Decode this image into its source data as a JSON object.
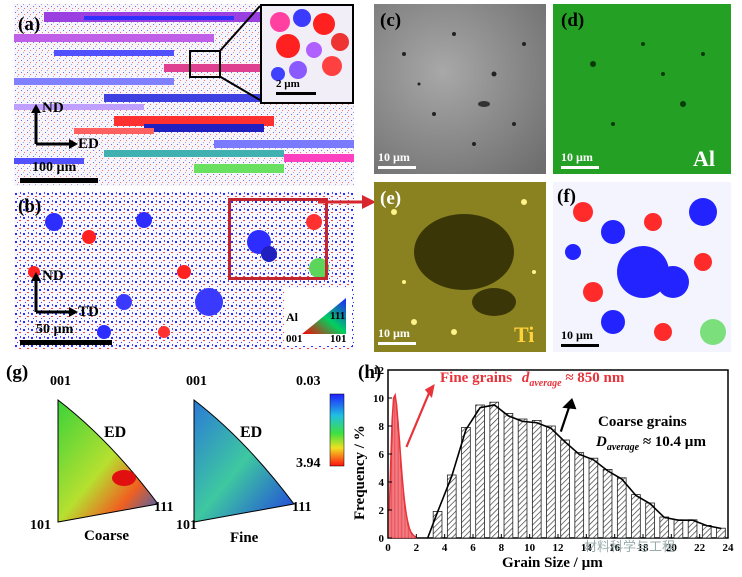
{
  "panels": {
    "a": {
      "label": "(a)",
      "axis_v": "ND",
      "axis_h": "ED",
      "scale_bar": "100 µm",
      "inset_scale": "2 µm"
    },
    "b": {
      "label": "(b)",
      "axis_v": "ND",
      "axis_h": "TD",
      "scale_bar": "50 µm",
      "ipf_key": {
        "element": "Al",
        "c001": "001",
        "c101": "101",
        "c111": "111"
      }
    },
    "c": {
      "label": "(c)",
      "scale_bar": "10 µm"
    },
    "d": {
      "label": "(d)",
      "scale_bar": "10 µm",
      "element": "Al"
    },
    "e": {
      "label": "(e)",
      "scale_bar": "10 µm",
      "element": "Ti"
    },
    "f": {
      "label": "(f)",
      "scale_bar": "10 µm"
    },
    "g": {
      "label": "(g)",
      "pole_figures": [
        {
          "name": "Coarse",
          "top": "001",
          "direction": "ED",
          "left": "101",
          "right": "111"
        },
        {
          "name": "Fine",
          "top": "001",
          "direction": "ED",
          "left": "101",
          "right": "111"
        }
      ],
      "colorbar": {
        "max": "0.03",
        "min": "3.94"
      }
    },
    "h": {
      "label": "(h)",
      "fine_label": "Fine grains",
      "fine_d_symbol": "d",
      "fine_d_sub": "average",
      "fine_value": "≈ 850 nm",
      "coarse_label": "Coarse grains",
      "coarse_d_symbol": "D",
      "coarse_d_sub": "average",
      "coarse_value": "≈ 10.4 µm",
      "watermark": "材料科学与工程"
    }
  },
  "chart_data": {
    "type": "bar",
    "xlabel": "Grain Size / µm",
    "ylabel": "Frequency / %",
    "xlim": [
      0,
      24
    ],
    "ylim": [
      0,
      12
    ],
    "xticks": [
      "0",
      "2",
      "4",
      "6",
      "8",
      "10",
      "12",
      "14",
      "16",
      "18",
      "20",
      "22",
      "24"
    ],
    "yticks": [
      "0",
      "2",
      "4",
      "6",
      "8",
      "10",
      "12"
    ],
    "series": [
      {
        "name": "Fine grains",
        "color": "#e8333a",
        "x": [
          0.1,
          0.2,
          0.3,
          0.4,
          0.5,
          0.6,
          0.7,
          0.8,
          0.9,
          1.0,
          1.1,
          1.2,
          1.3,
          1.4,
          1.5,
          1.6,
          1.7,
          1.8,
          1.9,
          2.0
        ],
        "values": [
          2.0,
          5.5,
          8.5,
          10.0,
          10.2,
          9.5,
          8.3,
          7.0,
          5.6,
          4.3,
          3.2,
          2.3,
          1.6,
          1.1,
          0.7,
          0.45,
          0.3,
          0.18,
          0.1,
          0.05
        ]
      },
      {
        "name": "Coarse grains",
        "color": "#555555",
        "x": [
          3.5,
          4.5,
          5.5,
          6.5,
          7.5,
          8.5,
          9.5,
          10.5,
          11.5,
          12.5,
          13.5,
          14.5,
          15.5,
          16.5,
          17.5,
          18.5,
          19.5,
          20.5,
          21.5,
          22.5,
          23.5
        ],
        "values": [
          1.9,
          4.5,
          7.9,
          9.5,
          9.7,
          8.9,
          8.5,
          8.4,
          8.0,
          7.0,
          6.1,
          5.7,
          4.9,
          4.3,
          3.1,
          2.5,
          1.5,
          1.3,
          1.3,
          0.9,
          0.7
        ]
      }
    ]
  }
}
